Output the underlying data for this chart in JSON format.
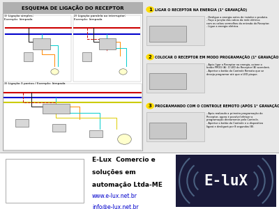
{
  "bg_color": "#e8e8e8",
  "top_section_bg": "#ffffff",
  "bottom_section_bg": "#ffffff",
  "header_bg": "#b0b0b0",
  "header_text": "ESQUEMA DE LIGAÇÃO DO RECEPTOR",
  "header_fontsize": 7,
  "right_title1": "LIGAR O RECEPTOR NA ENERGIA (1° GRAVAÇÃO)",
  "right_title2": "COLOCAR O RECEPTOR EM MODO PROGRAMAÇÃO (1° GRAVAÇÃO)",
  "right_title3": "PROGRAMANDO COM O CONTROLE REMOTO (APÓS 1° GRAVAÇÃO)",
  "company_name_line1": "E-Lux  Comercio e",
  "company_name_line2": "soluções em",
  "company_name_line3": "automação Ltda-ME",
  "company_url1": "www.e-lux.net.br",
  "company_url2": "info@e-lux.net.br",
  "logo_text": "E-luX",
  "logo_bg": "#1a1a3a",
  "logo_text_color": "#ffffff",
  "logo_arc_color": "#4a6080",
  "diagram_label1": "1) Ligação simples;\nExemplo: lâmpada",
  "diagram_label2": "2) Ligação paralela ao interruptor;\nExemplo: lâmpada",
  "diagram_label3": "3) Ligação 3 pontos / Exemplo: lâmpada",
  "wire_red": "#cc0000",
  "wire_blue": "#0000cc",
  "wire_yellow": "#cccc00",
  "wire_black": "#111111",
  "wire_orange": "#ff8800",
  "wire_cyan": "#00cccc",
  "inst1": "- Desligue a energia antes de instalar o produto.\n- Faça a junção dos cabos da rede elétrica\ncom os cabos vermelhos da entrada do Receptor.\n- Ligue a energia elétrica.",
  "inst2": "- Após ligar o Receptor na energia, acione o\nbotão PROG (A). O LED do Receptor (B) acenderá.\n- Apertar o botão do Controle Remoto que se\ndeseja programar até que o LED pisque.",
  "inst3": "- Após realizado a primeira programação do\nReceptor, agora é possível efetuar a\nprogramação diretamente pelo Controle.\n- Apertar o botão do Controle e o dispositivo\nligará e desligará por 8 segundos (B)."
}
